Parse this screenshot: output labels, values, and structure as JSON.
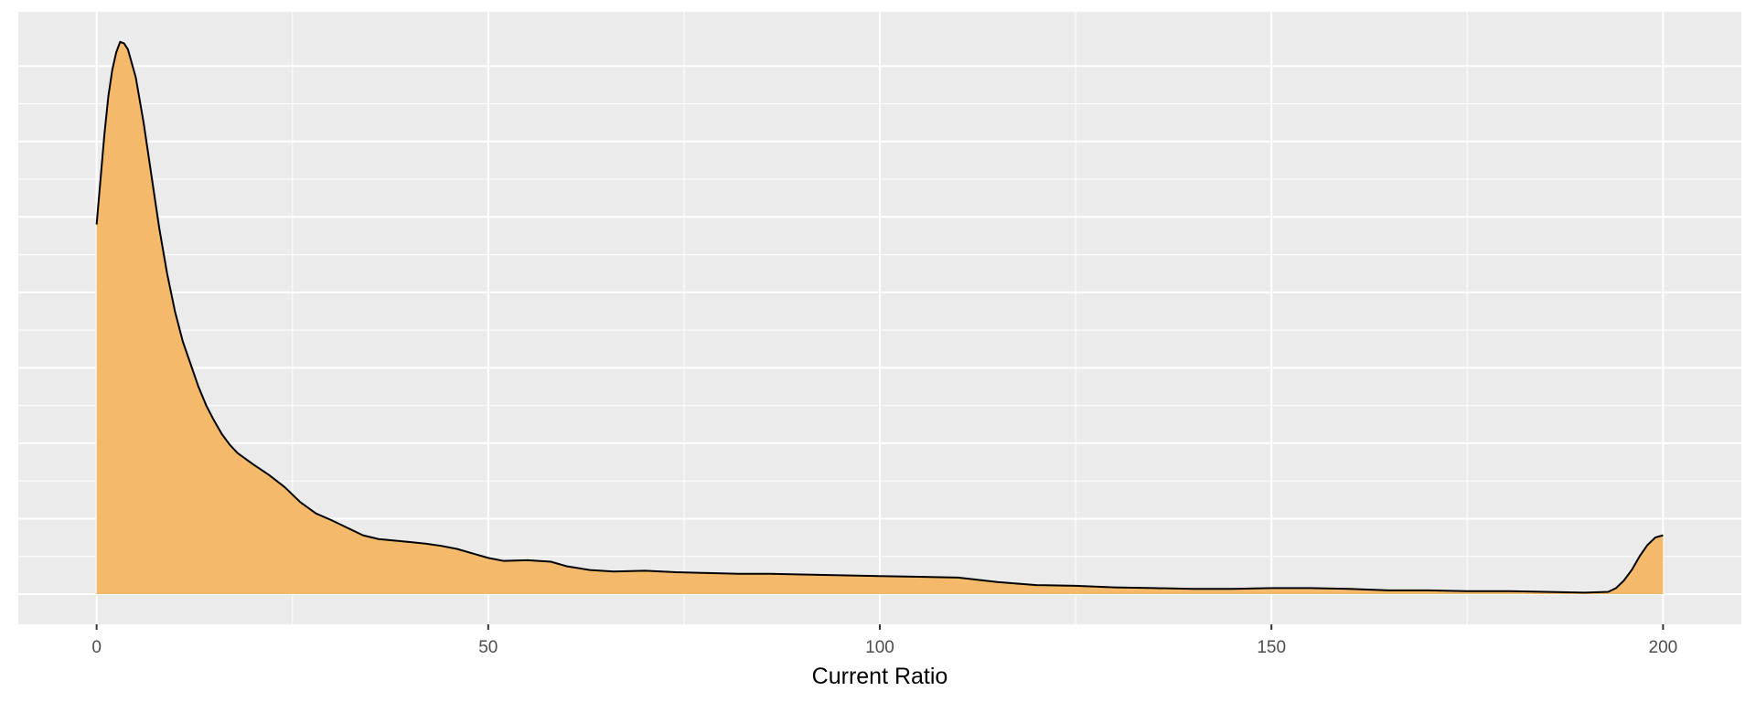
{
  "chart_data": {
    "type": "area",
    "title": "",
    "xlabel": "Current Ratio",
    "ylabel": "",
    "x_ticks": [
      0,
      50,
      100,
      150,
      200
    ],
    "x_tick_labels": [
      "0",
      "50",
      "100",
      "150",
      "200"
    ],
    "xlim": [
      -10,
      210
    ],
    "ylim": [
      0,
      0.0733
    ],
    "y_tick_labels_shown": false,
    "grid": true,
    "legend": "none",
    "colors": {
      "panel_background": "#ebebeb",
      "grid_line": "#ffffff",
      "fill": "#f5b96b",
      "outline": "#000000"
    },
    "series": [
      {
        "x": [
          0,
          0.5,
          1,
          1.5,
          2,
          2.5,
          3,
          3.5,
          4,
          5,
          6,
          7,
          8,
          9,
          10,
          11,
          12,
          13,
          14,
          15,
          16,
          17,
          18,
          20,
          22,
          24,
          26,
          28,
          30,
          32,
          34,
          36,
          38,
          40,
          42,
          44,
          46,
          48,
          50,
          52,
          55,
          58,
          60,
          63,
          66,
          70,
          74,
          78,
          82,
          86,
          90,
          95,
          100,
          105,
          110,
          115,
          120,
          125,
          130,
          135,
          140,
          145,
          150,
          155,
          160,
          165,
          170,
          175,
          180,
          185,
          190,
          193,
          194,
          195,
          196,
          197,
          198,
          199,
          200
        ],
        "y": [
          0.049,
          0.055,
          0.061,
          0.066,
          0.0695,
          0.0718,
          0.0732,
          0.073,
          0.0722,
          0.0685,
          0.0625,
          0.0555,
          0.0485,
          0.0425,
          0.0375,
          0.0335,
          0.0305,
          0.0275,
          0.025,
          0.023,
          0.0212,
          0.0198,
          0.0187,
          0.0172,
          0.0158,
          0.0142,
          0.0122,
          0.0107,
          0.0098,
          0.0088,
          0.0078,
          0.0073,
          0.0071,
          0.0069,
          0.0067,
          0.0064,
          0.006,
          0.0054,
          0.0048,
          0.0044,
          0.0045,
          0.0043,
          0.0037,
          0.0032,
          0.003,
          0.0031,
          0.0029,
          0.0028,
          0.0027,
          0.0027,
          0.0026,
          0.0025,
          0.0024,
          0.0023,
          0.0022,
          0.0016,
          0.0012,
          0.0011,
          0.0009,
          0.0008,
          0.0007,
          0.0007,
          0.0008,
          0.0008,
          0.0007,
          0.0005,
          0.0005,
          0.0004,
          0.0004,
          0.0003,
          0.0002,
          0.0003,
          0.0008,
          0.0018,
          0.0032,
          0.005,
          0.0065,
          0.0075,
          0.0078
        ]
      }
    ]
  }
}
